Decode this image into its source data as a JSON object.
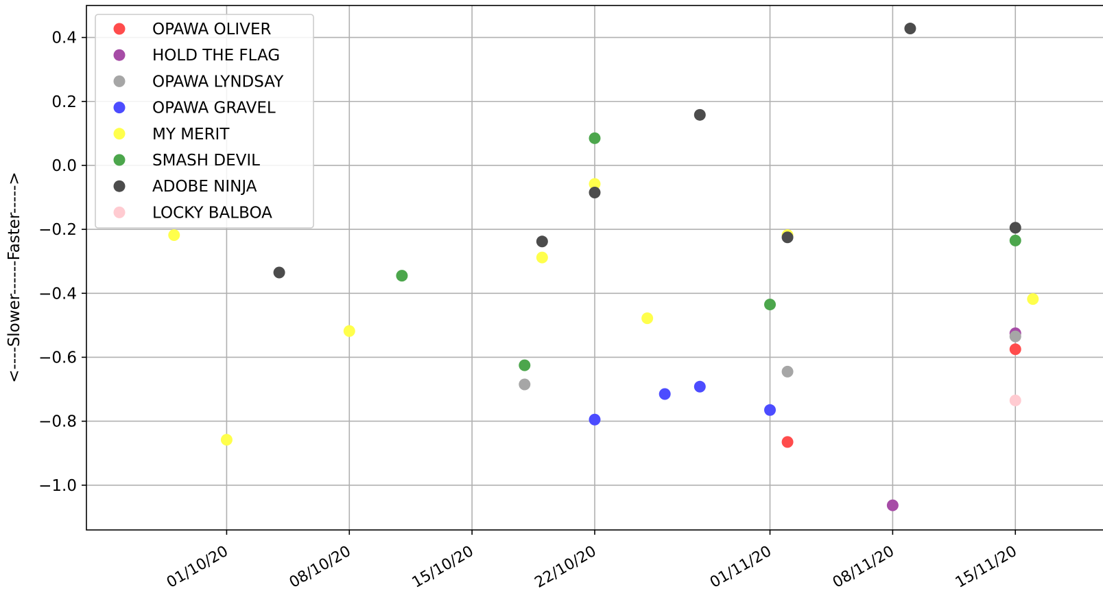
{
  "chart_data": {
    "type": "scatter",
    "title": "",
    "xlabel": "",
    "ylabel": "<----Slower------Faster----->",
    "xlim": [
      "2020-09-23",
      "2020-11-20"
    ],
    "ylim": [
      -1.14,
      0.5
    ],
    "grid": true,
    "legend_position": "top-left",
    "x_ticks": [
      "2020-10-01",
      "2020-10-08",
      "2020-10-15",
      "2020-10-22",
      "2020-11-01",
      "2020-11-08",
      "2020-11-15"
    ],
    "x_tick_labels": [
      "01/10/20",
      "08/10/20",
      "15/10/20",
      "22/10/20",
      "01/11/20",
      "08/11/20",
      "15/11/20"
    ],
    "y_ticks": [
      0.4,
      0.2,
      0.0,
      -0.2,
      -0.4,
      -0.6,
      -0.8,
      -1.0
    ],
    "y_tick_labels": [
      "0.4",
      "0.2",
      "0.0",
      "−0.2",
      "−0.4",
      "−0.6",
      "−0.8",
      "−1.0"
    ],
    "series": [
      {
        "name": "OPAWA OLIVER",
        "color": "#ff4c4c",
        "points": [
          {
            "x": "2020-11-02",
            "y": -0.865
          },
          {
            "x": "2020-11-15",
            "y": -0.575
          }
        ]
      },
      {
        "name": "HOLD THE FLAG",
        "color": "#a64ca6",
        "points": [
          {
            "x": "2020-11-08",
            "y": -1.063
          },
          {
            "x": "2020-11-15",
            "y": -0.525
          }
        ]
      },
      {
        "name": "OPAWA LYNDSAY",
        "color": "#a6a6a6",
        "points": [
          {
            "x": "2020-10-18",
            "y": -0.685
          },
          {
            "x": "2020-11-02",
            "y": -0.645
          },
          {
            "x": "2020-11-15",
            "y": -0.535
          }
        ]
      },
      {
        "name": "OPAWA GRAVEL",
        "color": "#4c4cff",
        "points": [
          {
            "x": "2020-10-22",
            "y": -0.795
          },
          {
            "x": "2020-10-26",
            "y": -0.715
          },
          {
            "x": "2020-10-28",
            "y": -0.692
          },
          {
            "x": "2020-11-01",
            "y": -0.765
          }
        ]
      },
      {
        "name": "MY MERIT",
        "color": "#ffff4c",
        "points": [
          {
            "x": "2020-09-28",
            "y": -0.218
          },
          {
            "x": "2020-10-01",
            "y": -0.858
          },
          {
            "x": "2020-10-08",
            "y": -0.518
          },
          {
            "x": "2020-10-19",
            "y": -0.288
          },
          {
            "x": "2020-10-22",
            "y": -0.058
          },
          {
            "x": "2020-10-25",
            "y": -0.478
          },
          {
            "x": "2020-11-02",
            "y": -0.218
          },
          {
            "x": "2020-11-16",
            "y": -0.418
          }
        ]
      },
      {
        "name": "SMASH DEVIL",
        "color": "#4ca64c",
        "points": [
          {
            "x": "2020-10-11",
            "y": -0.345
          },
          {
            "x": "2020-10-18",
            "y": -0.625
          },
          {
            "x": "2020-10-22",
            "y": 0.085
          },
          {
            "x": "2020-11-01",
            "y": -0.435
          },
          {
            "x": "2020-11-15",
            "y": -0.235
          }
        ]
      },
      {
        "name": "ADOBE NINJA",
        "color": "#4c4c4c",
        "points": [
          {
            "x": "2020-10-04",
            "y": -0.335
          },
          {
            "x": "2020-10-19",
            "y": -0.238
          },
          {
            "x": "2020-10-22",
            "y": -0.085
          },
          {
            "x": "2020-10-28",
            "y": 0.158
          },
          {
            "x": "2020-11-02",
            "y": -0.225
          },
          {
            "x": "2020-11-09",
            "y": 0.428
          },
          {
            "x": "2020-11-15",
            "y": -0.195
          }
        ]
      },
      {
        "name": "LOCKY BALBOA",
        "color": "#ffcbd1",
        "points": [
          {
            "x": "2020-11-15",
            "y": -0.735
          }
        ]
      }
    ]
  }
}
